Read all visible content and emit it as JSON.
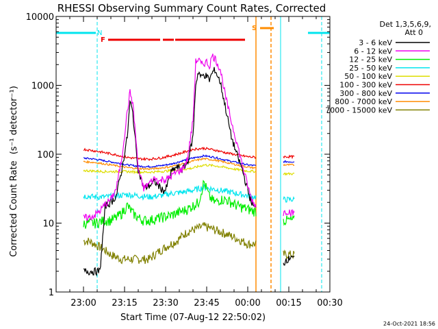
{
  "chart_data": {
    "type": "line",
    "title": "RHESSI Observing Summary Count Rates, Corrected",
    "xlabel": "Start Time (07-Aug-12 22:50:02)",
    "ylabel": "Corrected Count Rate",
    "ylabel_unit": "(s⁻¹ detector⁻¹)",
    "yscale": "log",
    "ylim": [
      1,
      10000
    ],
    "xlim_minutes": [
      -10,
      90
    ],
    "x_tick_minutes": [
      0,
      15,
      30,
      45,
      60,
      75,
      90
    ],
    "x_tick_labels": [
      "23:00",
      "23:15",
      "23:30",
      "23:45",
      "00:00",
      "00:15",
      "00:30"
    ],
    "y_tick_values": [
      1,
      10,
      100,
      1000,
      10000
    ],
    "y_tick_labels": [
      "1",
      "10",
      "100",
      "1000",
      "10000"
    ],
    "legend_header": [
      "Det 1,3,5,6,9,",
      "Att 0"
    ],
    "legend_position": "right",
    "timestamp": "24-Oct-2021 18:56",
    "flags": {
      "night_label": "N",
      "flare_label": "F",
      "saa_label": "S",
      "night_color": "#00e5ee",
      "flare_color": "#ee0000",
      "saa_color": "#ff8c00",
      "night_segments": [
        [
          -10,
          4.5
        ],
        [
          82,
          96
        ]
      ],
      "flare_segments": [
        [
          9,
          28
        ],
        [
          29,
          33
        ],
        [
          33.5,
          59
        ]
      ],
      "saa_segments": [
        [
          64.5,
          69.5
        ]
      ],
      "night_lines": [
        -10,
        5,
        72,
        87
      ],
      "saa_lines": [
        63,
        68.5
      ]
    },
    "series": [
      {
        "name": "3 - 6 keV",
        "color": "#000000",
        "x": [
          0,
          2,
          4,
          6,
          8,
          10,
          12,
          14,
          16,
          17,
          18,
          19,
          20,
          22,
          24,
          26,
          28,
          29,
          30,
          32,
          34,
          36,
          38,
          40,
          41,
          42,
          43,
          44,
          45,
          46,
          47,
          48,
          50,
          52,
          54,
          56,
          58,
          60,
          61,
          62,
          63
        ],
        "values": [
          2,
          2,
          2,
          2,
          18,
          20,
          25,
          60,
          180,
          580,
          400,
          150,
          60,
          32,
          35,
          40,
          33,
          30,
          30,
          55,
          65,
          60,
          75,
          180,
          1050,
          1600,
          1300,
          1450,
          1350,
          1200,
          1500,
          1700,
          1100,
          450,
          180,
          100,
          60,
          30,
          22,
          18,
          16
        ],
        "segments": [
          [
            [
              0,
              63
            ]
          ],
          [
            [
              73,
              77
            ]
          ]
        ],
        "x2": [
          73,
          74,
          75,
          76,
          77
        ],
        "values2": [
          2.5,
          3,
          3,
          3.5,
          3
        ]
      },
      {
        "name": "6 - 12 keV",
        "color": "#ee00ee",
        "x": [
          0,
          2,
          4,
          6,
          8,
          10,
          12,
          14,
          16,
          17,
          18,
          19,
          20,
          22,
          24,
          26,
          28,
          29,
          30,
          32,
          34,
          36,
          38,
          40,
          41,
          42,
          43,
          44,
          45,
          46,
          47,
          48,
          50,
          52,
          54,
          56,
          58,
          60,
          61,
          62,
          63
        ],
        "values": [
          12,
          12,
          13,
          15,
          19,
          22,
          32,
          90,
          420,
          800,
          550,
          200,
          60,
          32,
          38,
          45,
          40,
          45,
          42,
          48,
          55,
          60,
          85,
          310,
          2200,
          2400,
          2000,
          2100,
          2200,
          1900,
          2700,
          2500,
          1700,
          650,
          300,
          150,
          70,
          35,
          25,
          20,
          18
        ],
        "x2": [
          73,
          74,
          75,
          76,
          77
        ],
        "values2": [
          14,
          15,
          15,
          14,
          14
        ]
      },
      {
        "name": "12 - 25 keV",
        "color": "#00ee00",
        "x": [
          0,
          2,
          4,
          6,
          8,
          10,
          12,
          14,
          16,
          18,
          20,
          22,
          24,
          26,
          28,
          30,
          32,
          34,
          36,
          38,
          40,
          42,
          44,
          46,
          48,
          50,
          52,
          54,
          56,
          58,
          60,
          62,
          63
        ],
        "values": [
          10,
          10,
          10,
          10.5,
          11,
          11,
          12,
          14,
          18,
          14,
          12,
          11,
          11,
          11.5,
          12,
          12.5,
          13,
          14,
          15,
          16,
          18,
          20,
          40,
          24,
          20,
          22,
          22,
          20,
          18,
          17,
          16,
          15,
          15
        ],
        "x2": [
          73,
          74,
          75,
          76,
          77
        ],
        "values2": [
          11,
          11,
          11,
          11,
          11
        ]
      },
      {
        "name": "25 - 50 keV",
        "color": "#00e5ee",
        "x": [
          0,
          4,
          8,
          12,
          16,
          20,
          24,
          28,
          32,
          36,
          40,
          44,
          48,
          52,
          56,
          60,
          63
        ],
        "values": [
          25,
          24,
          24,
          25,
          26,
          25,
          24,
          25,
          27,
          28,
          30,
          33,
          31,
          29,
          27,
          25,
          24
        ],
        "x2": [
          73,
          77
        ],
        "values2": [
          22,
          22
        ]
      },
      {
        "name": "50 - 100 keV",
        "color": "#dddd00",
        "x": [
          0,
          4,
          8,
          12,
          16,
          20,
          24,
          28,
          32,
          36,
          40,
          44,
          48,
          52,
          56,
          60,
          63
        ],
        "values": [
          58,
          57,
          56,
          56,
          56,
          55,
          55,
          56,
          58,
          60,
          63,
          70,
          68,
          64,
          60,
          57,
          56
        ],
        "x2": [
          73,
          77
        ],
        "values2": [
          52,
          52
        ]
      },
      {
        "name": "100 - 300 keV",
        "color": "#ee0000",
        "x": [
          0,
          4,
          8,
          12,
          16,
          20,
          24,
          28,
          32,
          36,
          40,
          44,
          48,
          52,
          56,
          60,
          63
        ],
        "values": [
          118,
          112,
          105,
          98,
          90,
          86,
          85,
          88,
          95,
          105,
          118,
          122,
          115,
          105,
          98,
          92,
          90
        ],
        "x2": [
          73,
          77
        ],
        "values2": [
          92,
          92
        ]
      },
      {
        "name": "300 - 800 keV",
        "color": "#0000ee",
        "x": [
          0,
          4,
          8,
          12,
          16,
          20,
          24,
          28,
          32,
          36,
          40,
          44,
          48,
          52,
          56,
          60,
          63
        ],
        "values": [
          88,
          85,
          80,
          75,
          70,
          67,
          66,
          68,
          72,
          80,
          88,
          95,
          90,
          82,
          76,
          70,
          68
        ],
        "x2": [
          73,
          77
        ],
        "values2": [
          78,
          78
        ]
      },
      {
        "name": "800 - 7000 keV",
        "color": "#ff8c00",
        "x": [
          0,
          4,
          8,
          12,
          16,
          20,
          24,
          28,
          32,
          36,
          40,
          44,
          48,
          52,
          56,
          60,
          63
        ],
        "values": [
          78,
          76,
          72,
          68,
          64,
          62,
          61,
          63,
          66,
          72,
          80,
          86,
          82,
          76,
          70,
          65,
          63
        ],
        "x2": [
          73,
          77
        ],
        "values2": [
          70,
          70
        ]
      },
      {
        "name": "7000 - 15000 keV",
        "color": "#808000",
        "x": [
          0,
          2,
          4,
          6,
          8,
          10,
          12,
          14,
          16,
          18,
          20,
          22,
          24,
          26,
          28,
          30,
          32,
          34,
          36,
          38,
          40,
          42,
          44,
          46,
          48,
          50,
          52,
          54,
          56,
          58,
          60,
          62,
          63
        ],
        "values": [
          5.5,
          5.5,
          5,
          4.5,
          4,
          3.5,
          3.2,
          3,
          3,
          3,
          3,
          3,
          3,
          3.5,
          4,
          4.5,
          5,
          5.5,
          6.5,
          7.5,
          8,
          8.5,
          9,
          8.5,
          8,
          7.5,
          7,
          6.5,
          6,
          5.5,
          5,
          5,
          5
        ],
        "x2": [
          73,
          74,
          75,
          76,
          77
        ],
        "values2": [
          3.5,
          3.5,
          3.5,
          3.5,
          3.5
        ]
      }
    ]
  }
}
